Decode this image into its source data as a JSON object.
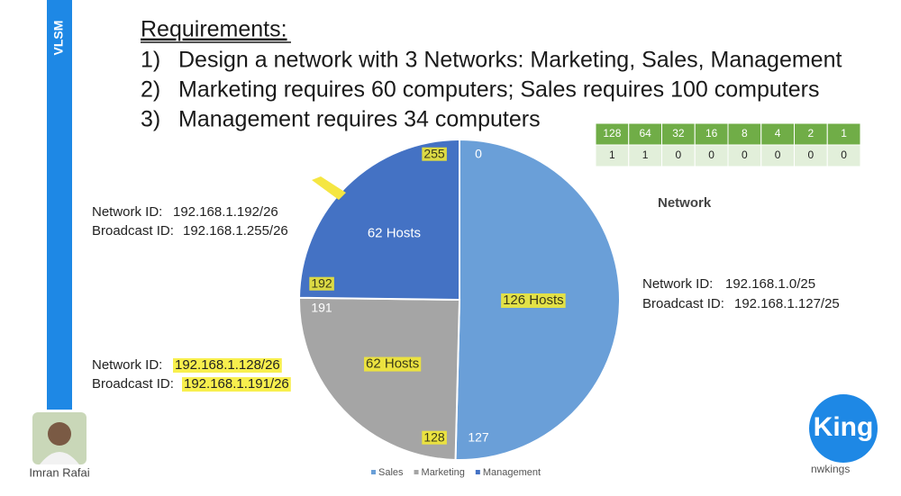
{
  "sidebar": {
    "title": "VLSM"
  },
  "requirements": {
    "heading": "Requirements:",
    "items": [
      {
        "num": "1)",
        "text": "Design a network with 3 Networks: Marketing, Sales, Management"
      },
      {
        "num": "2)",
        "text": "Marketing requires 60 computers; Sales requires 100 computers"
      },
      {
        "num": "3)",
        "text": "Management requires 34 computers"
      }
    ]
  },
  "binary_table": {
    "header": [
      "128",
      "64",
      "32",
      "16",
      "8",
      "4",
      "2",
      "1"
    ],
    "row": [
      "1",
      "1",
      "0",
      "0",
      "0",
      "0",
      "0",
      "0"
    ]
  },
  "network_label": "Network",
  "networks": [
    {
      "network_label": "Network ID:",
      "network_id": "192.168.1.192/26",
      "broadcast_label": "Broadcast ID:",
      "broadcast_id": "192.168.1.255/26"
    },
    {
      "network_label": "Network ID:",
      "network_id": "192.168.1.128/26",
      "broadcast_label": "Broadcast ID:",
      "broadcast_id": "192.168.1.191/26"
    },
    {
      "network_label": "Network ID:",
      "network_id": "192.168.1.0/25",
      "broadcast_label": "Broadcast ID:",
      "broadcast_id": "192.168.1.127/25"
    }
  ],
  "chart_data": {
    "type": "pie",
    "categories": [
      "Sales",
      "Marketing",
      "Management"
    ],
    "values": [
      126,
      62,
      62
    ],
    "value_labels": [
      "126 Hosts",
      "62 Hosts",
      "62 Hosts"
    ],
    "colors": [
      "#6a9fd8",
      "#a5a5a5",
      "#4472c4"
    ],
    "boundary_labels": [
      "0",
      "127",
      "128",
      "191",
      "192",
      "255"
    ],
    "legend": "bottom"
  },
  "presenter": {
    "name": "Imran Rafai"
  },
  "logo": {
    "text": "King",
    "site": "nwkings"
  }
}
